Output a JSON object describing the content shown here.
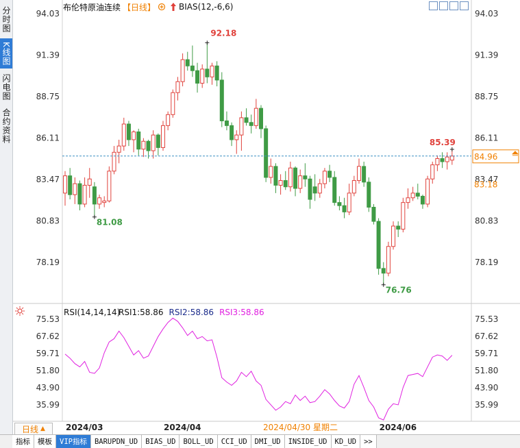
{
  "side_tabs": [
    "分时图",
    "K线图",
    "闪电图",
    "合约资料"
  ],
  "chart_data": [
    {
      "type": "candlestick",
      "title": "布伦特原油连续",
      "period": "【日线】",
      "indicator": "BIAS(12,-6,6)",
      "up_color": "#e0413b",
      "down_color": "#3f9b45",
      "categories": [
        "2024/03",
        null,
        null,
        null,
        null,
        null,
        null,
        null,
        null,
        null,
        null,
        null,
        null,
        null,
        null,
        null,
        null,
        null,
        null,
        null,
        "2024/04",
        null,
        null,
        null,
        null,
        null,
        null,
        null,
        null,
        null,
        null,
        null,
        null,
        null,
        null,
        null,
        null,
        null,
        null,
        null,
        null,
        null,
        null,
        null,
        null,
        null,
        null,
        null,
        null,
        null,
        null,
        null,
        null,
        null,
        null,
        null,
        null,
        null,
        null,
        null,
        null,
        null,
        null,
        null,
        "2024/06",
        null,
        null,
        null,
        null,
        null,
        null,
        null,
        null,
        null,
        null,
        null,
        null,
        null,
        null,
        null
      ],
      "open": [
        82.6,
        83.7,
        82.5,
        83.2,
        81.9,
        83.1,
        83.0,
        81.9,
        82.0,
        82.1,
        84.0,
        85.2,
        85.6,
        87.0,
        86.0,
        86.5,
        85.4,
        85.9,
        85.3,
        86.3,
        85.5,
        86.9,
        87.6,
        89.0,
        89.7,
        91.1,
        90.7,
        90.4,
        89.6,
        90.5,
        90.0,
        90.7,
        89.8,
        87.2,
        86.9,
        86.0,
        86.3,
        87.4,
        87.1,
        86.9,
        88.0,
        86.7,
        83.6,
        84.3,
        83.1,
        83.4,
        83.0,
        84.2,
        82.9,
        83.7,
        83.5,
        83.0,
        82.6,
        83.2,
        84.0,
        83.6,
        82.0,
        81.8,
        81.4,
        82.6,
        83.4,
        84.3,
        83.3,
        81.7,
        80.8,
        77.8,
        77.5,
        79.2,
        80.5,
        80.3,
        82.0,
        82.3,
        82.6,
        82.4,
        81.9,
        83.5,
        84.4,
        84.8,
        84.6,
        84.7
      ],
      "high": [
        84.0,
        84.2,
        83.6,
        83.4,
        83.6,
        84.2,
        83.3,
        82.5,
        82.4,
        84.3,
        85.6,
        86.0,
        87.4,
        87.2,
        86.6,
        86.7,
        86.1,
        86.0,
        86.6,
        86.4,
        87.2,
        87.8,
        89.2,
        90.0,
        91.5,
        91.6,
        92.0,
        90.9,
        90.8,
        92.18,
        90.9,
        91.0,
        90.3,
        87.8,
        87.1,
        86.6,
        87.8,
        88.0,
        87.6,
        88.6,
        88.2,
        86.9,
        84.8,
        84.5,
        83.8,
        84.0,
        84.6,
        84.3,
        84.1,
        84.5,
        83.7,
        83.8,
        83.5,
        84.2,
        84.4,
        84.0,
        82.4,
        82.3,
        83.2,
        83.7,
        84.8,
        84.6,
        83.6,
        81.9,
        81.0,
        78.2,
        79.5,
        80.8,
        80.8,
        82.3,
        82.9,
        83.0,
        83.2,
        82.5,
        83.7,
        84.6,
        85.0,
        85.2,
        85.2,
        85.39
      ],
      "low": [
        81.8,
        82.2,
        81.9,
        81.5,
        81.7,
        82.3,
        81.08,
        81.6,
        81.7,
        82.0,
        83.8,
        84.5,
        85.3,
        85.6,
        85.2,
        85.0,
        84.9,
        84.8,
        84.8,
        85.0,
        85.3,
        86.6,
        87.4,
        88.5,
        89.4,
        90.4,
        90.0,
        89.0,
        89.3,
        89.6,
        89.5,
        89.4,
        86.8,
        86.6,
        85.6,
        85.1,
        85.3,
        86.9,
        86.4,
        86.7,
        86.1,
        83.3,
        83.2,
        82.6,
        82.5,
        82.8,
        82.7,
        82.4,
        82.6,
        83.0,
        81.6,
        82.1,
        82.3,
        82.9,
        83.3,
        81.8,
        81.5,
        81.0,
        81.2,
        82.4,
        83.2,
        83.0,
        81.4,
        80.6,
        77.4,
        76.76,
        77.3,
        79.0,
        79.8,
        80.1,
        81.6,
        82.1,
        82.2,
        81.6,
        81.7,
        83.2,
        84.0,
        84.2,
        84.1,
        84.4
      ],
      "close": [
        83.7,
        82.5,
        83.2,
        81.9,
        83.1,
        83.5,
        81.9,
        82.3,
        82.1,
        84.0,
        85.2,
        85.6,
        87.0,
        86.0,
        86.5,
        85.4,
        85.9,
        85.3,
        86.3,
        85.5,
        86.9,
        87.6,
        89.0,
        89.7,
        91.1,
        90.7,
        90.4,
        89.6,
        90.5,
        90.0,
        90.7,
        89.8,
        87.2,
        86.9,
        86.0,
        86.3,
        87.4,
        87.1,
        86.9,
        88.0,
        86.7,
        83.6,
        84.3,
        83.1,
        83.4,
        83.0,
        84.2,
        82.9,
        83.7,
        83.5,
        82.2,
        82.6,
        83.2,
        84.0,
        83.6,
        82.0,
        81.8,
        81.4,
        82.6,
        83.4,
        84.3,
        83.3,
        81.7,
        80.8,
        77.8,
        77.5,
        79.2,
        80.5,
        80.3,
        82.0,
        82.3,
        82.6,
        82.4,
        81.9,
        83.5,
        84.4,
        84.8,
        84.6,
        84.9,
        84.96
      ],
      "ref_price": 83.18,
      "crosshair_label": "2024/04/30 星期二",
      "ylim": [
        75.7,
        94.9
      ],
      "yticks": [
        94.03,
        91.39,
        88.75,
        86.11,
        83.47,
        80.83,
        78.19
      ],
      "grid": false
    },
    {
      "type": "line",
      "title": "RSI(14,14,14)",
      "legend": [
        {
          "label": "RSI1:58.86",
          "color": "#111111"
        },
        {
          "label": "RSI2:58.86",
          "color": "#1a2a8a"
        },
        {
          "label": "RSI3:58.86",
          "color": "#e020e0"
        }
      ],
      "series": [
        {
          "color": "#e020e0",
          "values": [
            59.4,
            57.5,
            55.0,
            53.5,
            56.0,
            51.0,
            50.5,
            53.0,
            60.0,
            65.0,
            66.5,
            70.0,
            67.0,
            63.0,
            59.0,
            61.0,
            57.5,
            58.5,
            63.0,
            67.5,
            71.0,
            74.0,
            76.0,
            74.5,
            71.5,
            68.0,
            70.0,
            66.5,
            67.5,
            65.5,
            66.0,
            58.0,
            48.5,
            46.5,
            45.0,
            47.0,
            51.0,
            49.0,
            51.5,
            47.0,
            45.0,
            38.5,
            36.0,
            33.5,
            35.0,
            37.5,
            36.5,
            40.5,
            38.0,
            40.0,
            37.0,
            37.5,
            40.0,
            43.0,
            41.0,
            38.0,
            35.5,
            34.5,
            37.5,
            45.5,
            49.5,
            44.0,
            38.0,
            35.0,
            30.0,
            29.0,
            34.0,
            36.5,
            36.0,
            44.0,
            49.5,
            50.0,
            50.5,
            49.0,
            53.5,
            58.0,
            59.0,
            58.5,
            56.5,
            58.86
          ]
        }
      ],
      "ylim": [
        28.4,
        81.5
      ],
      "yticks": [
        75.53,
        67.62,
        59.71,
        {
          "value": 51.8,
          "label": "51.80"
        },
        {
          "value": 43.9,
          "label": "43.90"
        },
        35.99
      ],
      "grid": false
    }
  ],
  "toolbar": {
    "period": "日线",
    "tabs": [
      "指标",
      "模板",
      "VIP指标",
      "BARUPDN_UD",
      "BIAS_UD",
      "BOLL_UD",
      "CCI_UD",
      "DMI_UD",
      "INSIDE_UD",
      "KD_UD",
      ">>"
    ]
  }
}
